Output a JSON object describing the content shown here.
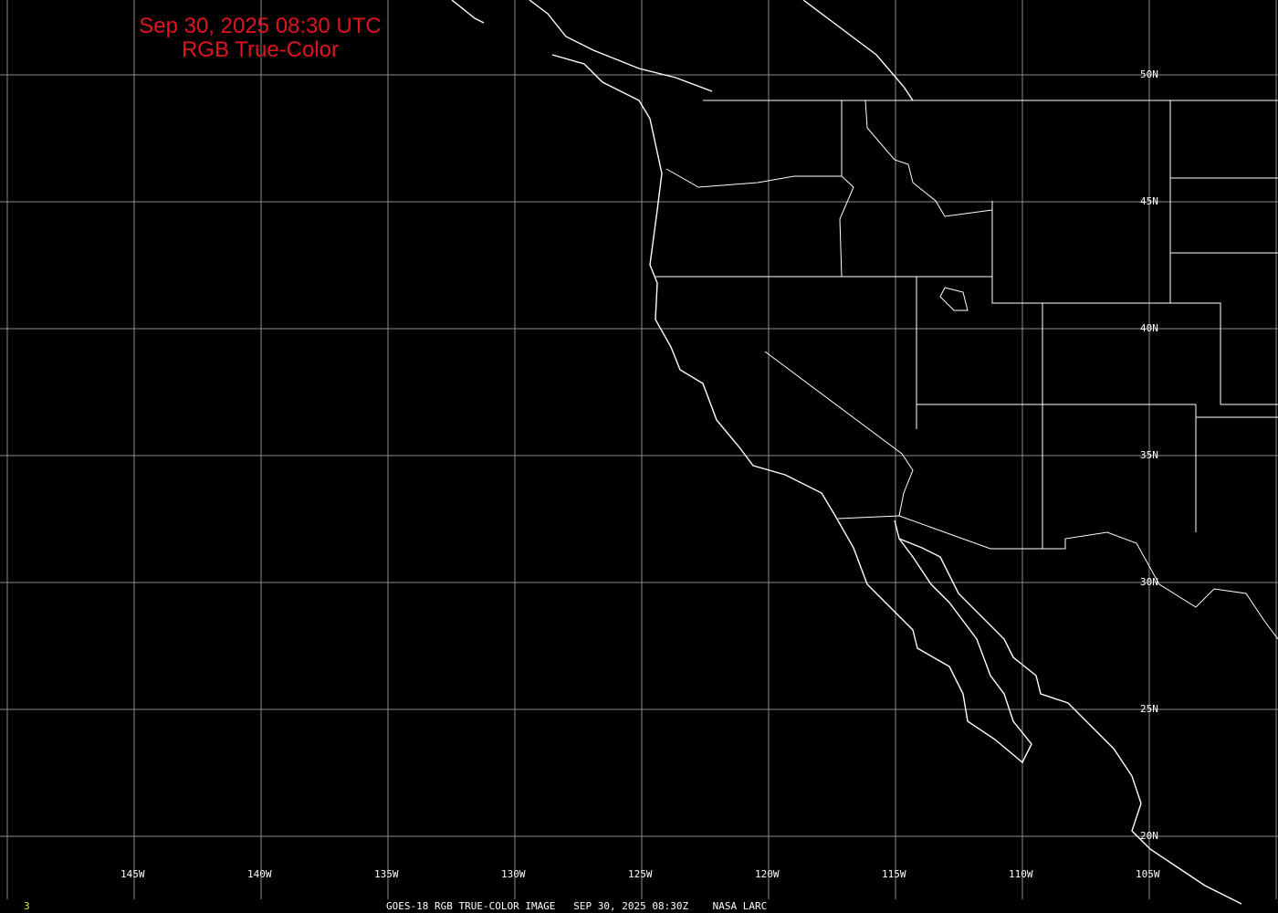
{
  "title": {
    "line1": "Sep 30, 2025 08:30 UTC",
    "line2": "RGB True-Color"
  },
  "lat_labels": [
    "50N",
    "45N",
    "40N",
    "35N",
    "30N",
    "25N",
    "20N"
  ],
  "lon_labels": [
    "145W",
    "140W",
    "135W",
    "130W",
    "125W",
    "120W",
    "115W",
    "110W",
    "105W"
  ],
  "footer": {
    "frame_number": "3",
    "caption": "GOES-18 RGB TRUE-COLOR IMAGE   SEP 30, 2025 08:30Z    NASA LARC"
  },
  "colors": {
    "title": "#e0141e",
    "grid": "#8c8c8c",
    "boundaries": "#ffffff",
    "frame_number": "#e8e830"
  }
}
